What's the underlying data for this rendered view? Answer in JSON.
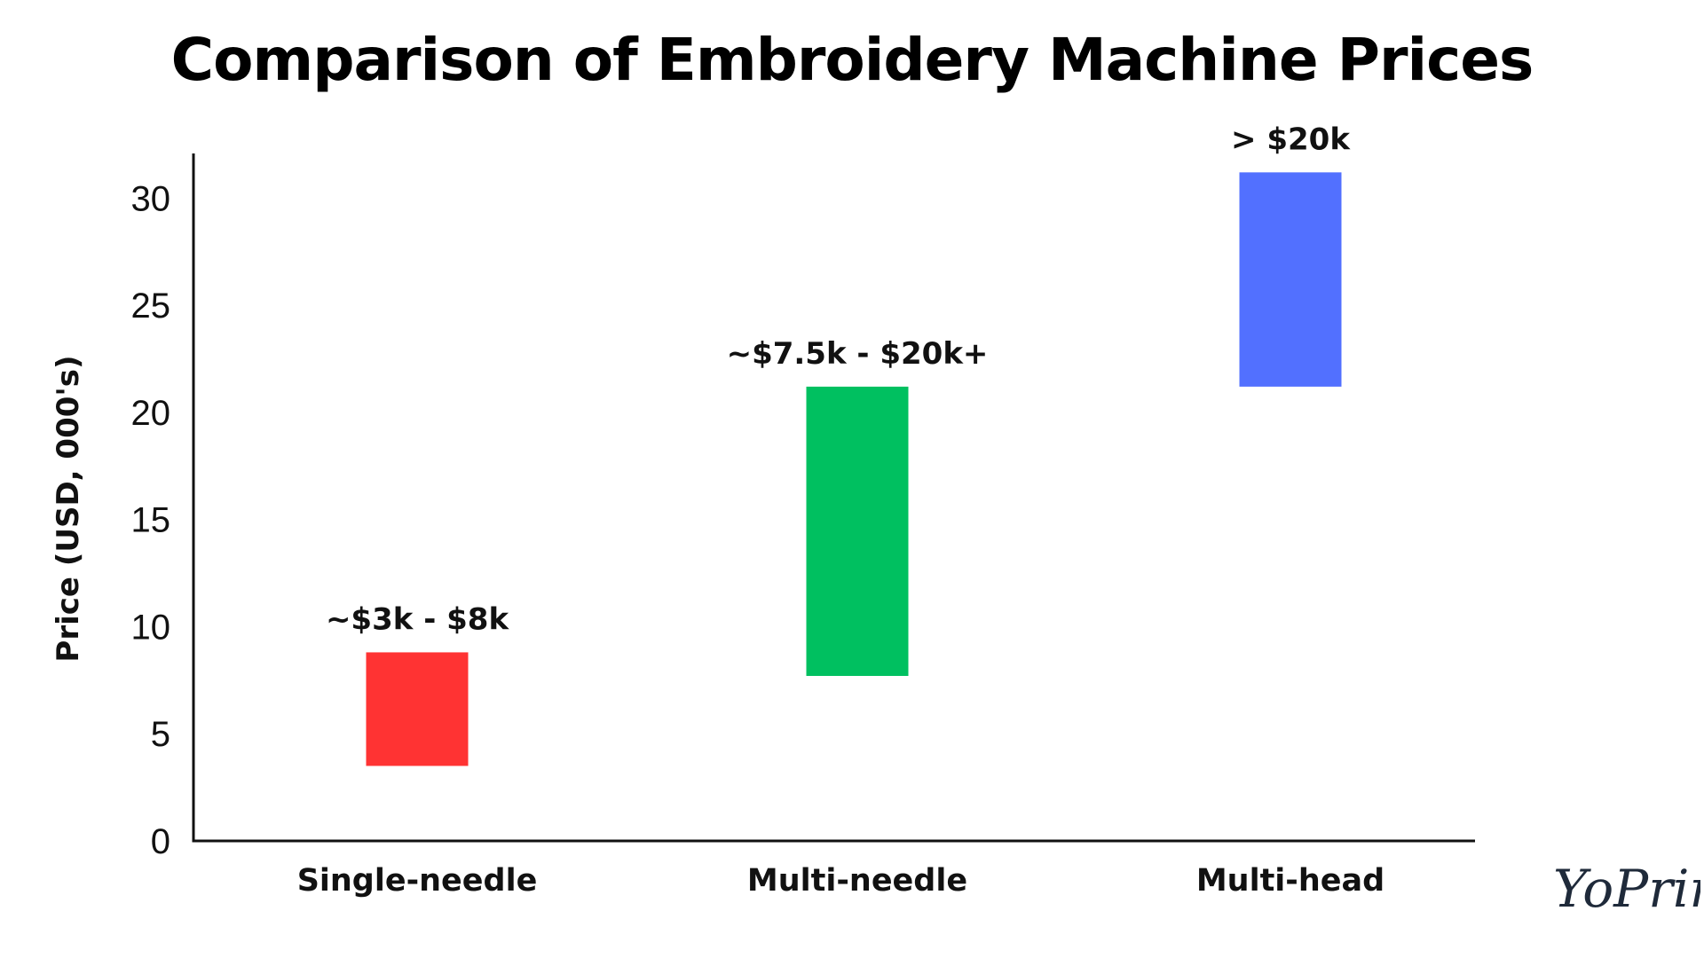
{
  "chart_data": {
    "type": "bar",
    "title": "Comparison of Embroidery Machine Prices",
    "ylabel": "Price (USD, 000's)",
    "xlabel": "",
    "ylim": [
      0,
      32
    ],
    "yticks": [
      0,
      5,
      10,
      15,
      20,
      25,
      30
    ],
    "grid": false,
    "legend": "none",
    "categories": [
      "Single-needle",
      "Multi-needle",
      "Multi-head"
    ],
    "ranges": [
      {
        "low": 3.5,
        "high": 8.8,
        "label": "~$3k - $8k",
        "color": "#ff3333"
      },
      {
        "low": 7.7,
        "high": 21.2,
        "label": "~$7.5k - $20k+",
        "color": "#00c060"
      },
      {
        "low": 21.2,
        "high": 31.2,
        "label": "> $20k",
        "color": "#5270ff"
      }
    ]
  },
  "branding": {
    "logo_text": "YoPrint"
  }
}
